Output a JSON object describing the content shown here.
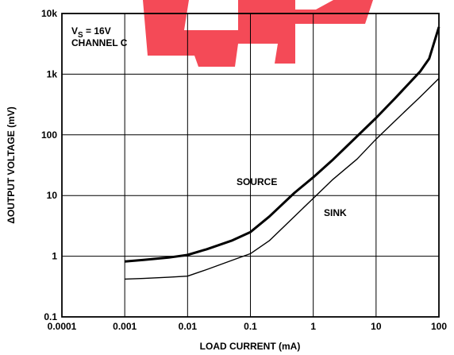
{
  "chart_data": {
    "type": "line",
    "xlabel": "LOAD CURRENT (mA)",
    "ylabel": "ΔOUTPUT VOLTAGE (mV)",
    "x_scale": "log",
    "y_scale": "log",
    "xlim": [
      0.0001,
      100
    ],
    "ylim": [
      0.1,
      10000
    ],
    "grid": true,
    "x_ticks": [
      "0.0001",
      "0.001",
      "0.01",
      "0.1",
      "1",
      "10",
      "100"
    ],
    "y_ticks": [
      "0.1",
      "1",
      "10",
      "100",
      "1k",
      "10k"
    ],
    "annotation": {
      "vs_prefix": "V",
      "vs_sub": "S",
      "vs_value": " = 16V",
      "channel": "CHANNEL C"
    },
    "series": [
      {
        "name": "SOURCE",
        "stroke": "#000000",
        "x": [
          0.001,
          0.002,
          0.005,
          0.01,
          0.02,
          0.05,
          0.1,
          0.2,
          0.5,
          1,
          2,
          5,
          10,
          20,
          50,
          70,
          100
        ],
        "y": [
          0.82,
          0.87,
          0.95,
          1.05,
          1.3,
          1.8,
          2.5,
          4.5,
          11,
          20,
          38,
          95,
          190,
          400,
          1100,
          1800,
          6000
        ]
      },
      {
        "name": "SINK",
        "stroke": "#000000",
        "x": [
          0.001,
          0.002,
          0.005,
          0.01,
          0.02,
          0.05,
          0.1,
          0.2,
          0.5,
          1,
          2,
          5,
          10,
          20,
          50,
          100
        ],
        "y": [
          0.42,
          0.43,
          0.45,
          0.47,
          0.6,
          0.85,
          1.1,
          1.8,
          4.5,
          9,
          18,
          40,
          85,
          170,
          420,
          850
        ]
      }
    ]
  }
}
